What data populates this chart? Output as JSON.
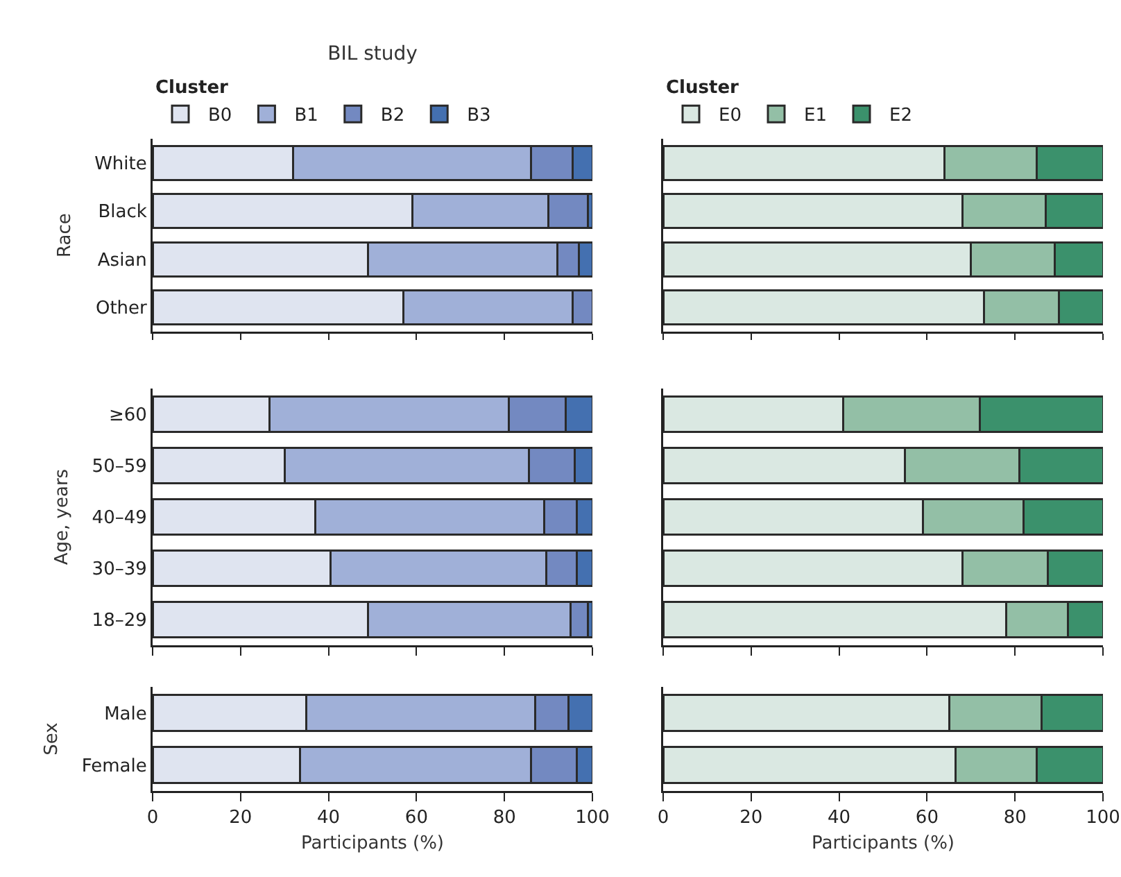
{
  "chart_data": [
    {
      "type": "bar",
      "orientation": "horizontal",
      "stacked": true,
      "title": "BIL study",
      "legend_title": "Cluster",
      "legend": "top",
      "ylabel": "Race",
      "categories": [
        "White",
        "Black",
        "Asian",
        "Other"
      ],
      "xlim": [
        0,
        100
      ],
      "xticks": [
        0,
        20,
        40,
        60,
        80,
        100
      ],
      "tick_labels": "y",
      "series": [
        {
          "name": "B0",
          "color": "#dfe4f0",
          "values": [
            32,
            59,
            49,
            57
          ]
        },
        {
          "name": "B1",
          "color": "#a0b0d8",
          "values": [
            54,
            31,
            43,
            38.5
          ]
        },
        {
          "name": "B2",
          "color": "#7389c1",
          "values": [
            9.5,
            9,
            5,
            4.5
          ]
        },
        {
          "name": "B3",
          "color": "#4470b0",
          "values": [
            4.5,
            1,
            3,
            null
          ]
        }
      ]
    },
    {
      "type": "bar",
      "orientation": "horizontal",
      "stacked": true,
      "legend_title": "Cluster",
      "legend": "top",
      "categories": [
        null,
        null,
        null,
        null
      ],
      "xlim": [
        0,
        100
      ],
      "xticks": [
        0,
        20,
        40,
        60,
        80,
        100
      ],
      "tick_labels": false,
      "series": [
        {
          "name": "E0",
          "color": "#dae8e2",
          "values": [
            64,
            68,
            70,
            73
          ]
        },
        {
          "name": "E1",
          "color": "#93bfa6",
          "values": [
            21,
            19,
            19,
            17
          ]
        },
        {
          "name": "E2",
          "color": "#3b916c",
          "values": [
            15,
            13,
            11,
            10
          ]
        }
      ]
    },
    {
      "type": "bar",
      "orientation": "horizontal",
      "stacked": true,
      "ylabel": "Age, years",
      "categories": [
        "≥60",
        "50–59",
        "40–49",
        "30–39",
        "18–29"
      ],
      "xlim": [
        0,
        100
      ],
      "xticks": [
        0,
        20,
        40,
        60,
        80,
        100
      ],
      "tick_labels": "y",
      "series": [
        {
          "color": "#dfe4f0",
          "values": [
            26.5,
            30,
            37,
            40.5,
            49
          ]
        },
        {
          "color": "#a0b0d8",
          "values": [
            54.5,
            55.5,
            52,
            49,
            46
          ]
        },
        {
          "color": "#7389c1",
          "values": [
            13,
            10.5,
            7.5,
            7,
            4
          ]
        },
        {
          "color": "#4470b0",
          "values": [
            6,
            4,
            3.5,
            3.5,
            1
          ]
        }
      ]
    },
    {
      "type": "bar",
      "orientation": "horizontal",
      "stacked": true,
      "categories": [
        null,
        null,
        null,
        null,
        null
      ],
      "xlim": [
        0,
        100
      ],
      "xticks": [
        0,
        20,
        40,
        60,
        80,
        100
      ],
      "tick_labels": false,
      "series": [
        {
          "color": "#dae8e2",
          "values": [
            41,
            55,
            59,
            68,
            78
          ]
        },
        {
          "color": "#93bfa6",
          "values": [
            31,
            26,
            23,
            19.5,
            14
          ]
        },
        {
          "color": "#3b916c",
          "values": [
            28,
            19,
            18,
            12.5,
            8
          ]
        }
      ]
    },
    {
      "type": "bar",
      "orientation": "horizontal",
      "stacked": true,
      "ylabel": "Sex",
      "xlabel": "Participants (%)",
      "categories": [
        "Male",
        "Female"
      ],
      "xlim": [
        0,
        100
      ],
      "xticks": [
        0,
        20,
        40,
        60,
        80,
        100
      ],
      "series": [
        {
          "color": "#dfe4f0",
          "values": [
            35,
            33.5
          ]
        },
        {
          "color": "#a0b0d8",
          "values": [
            52,
            52.5
          ]
        },
        {
          "color": "#7389c1",
          "values": [
            7.5,
            10.5
          ]
        },
        {
          "color": "#4470b0",
          "values": [
            5.5,
            3.5
          ]
        }
      ]
    },
    {
      "type": "bar",
      "orientation": "horizontal",
      "stacked": true,
      "xlabel": "Participants (%)",
      "categories": [
        null,
        null
      ],
      "xlim": [
        0,
        100
      ],
      "xticks": [
        0,
        20,
        40,
        60,
        80,
        100
      ],
      "tick_labels": "x",
      "series": [
        {
          "color": "#dae8e2",
          "values": [
            65,
            66.5
          ]
        },
        {
          "color": "#93bfa6",
          "values": [
            21,
            18.5
          ]
        },
        {
          "color": "#3b916c",
          "values": [
            14,
            15
          ]
        }
      ]
    }
  ]
}
